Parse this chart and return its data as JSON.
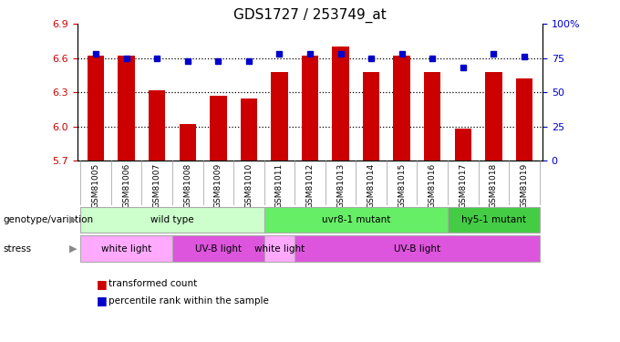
{
  "title": "GDS1727 / 253749_at",
  "samples": [
    "GSM81005",
    "GSM81006",
    "GSM81007",
    "GSM81008",
    "GSM81009",
    "GSM81010",
    "GSM81011",
    "GSM81012",
    "GSM81013",
    "GSM81014",
    "GSM81015",
    "GSM81016",
    "GSM81017",
    "GSM81018",
    "GSM81019"
  ],
  "bar_values": [
    6.62,
    6.62,
    6.32,
    6.02,
    6.27,
    6.25,
    6.48,
    6.62,
    6.7,
    6.48,
    6.62,
    6.48,
    5.98,
    6.48,
    6.42
  ],
  "percentile_values": [
    78,
    75,
    75,
    73,
    73,
    73,
    78,
    78,
    78,
    75,
    78,
    75,
    68,
    78,
    76
  ],
  "bar_color": "#cc0000",
  "dot_color": "#0000cc",
  "bar_bottom": 5.7,
  "ylim_left": [
    5.7,
    6.9
  ],
  "ylim_right": [
    0,
    100
  ],
  "yticks_left": [
    5.7,
    6.0,
    6.3,
    6.6,
    6.9
  ],
  "yticks_right": [
    0,
    25,
    50,
    75,
    100
  ],
  "ytick_labels_right": [
    "0",
    "25",
    "50",
    "75",
    "100%"
  ],
  "hline_values": [
    6.0,
    6.3,
    6.6
  ],
  "genotype_groups": [
    {
      "label": "wild type",
      "start": 0,
      "end": 6,
      "color": "#ccffcc"
    },
    {
      "label": "uvr8-1 mutant",
      "start": 6,
      "end": 12,
      "color": "#66ee66"
    },
    {
      "label": "hy5-1 mutant",
      "start": 12,
      "end": 15,
      "color": "#44cc44"
    }
  ],
  "stress_groups": [
    {
      "label": "white light",
      "start": 0,
      "end": 3,
      "color": "#ffaaff"
    },
    {
      "label": "UV-B light",
      "start": 3,
      "end": 6,
      "color": "#dd55dd"
    },
    {
      "label": "white light",
      "start": 6,
      "end": 7,
      "color": "#ffaaff"
    },
    {
      "label": "UV-B light",
      "start": 7,
      "end": 15,
      "color": "#dd55dd"
    }
  ],
  "legend_red_label": "transformed count",
  "legend_blue_label": "percentile rank within the sample",
  "left_label_genotype": "genotype/variation",
  "left_label_stress": "stress",
  "tick_color_left": "#cc0000",
  "tick_color_right": "#0000cc",
  "title_fontsize": 11,
  "bar_width": 0.55,
  "xtick_bg_color": "#bbbbbb",
  "xtick_divider_color": "#999999"
}
